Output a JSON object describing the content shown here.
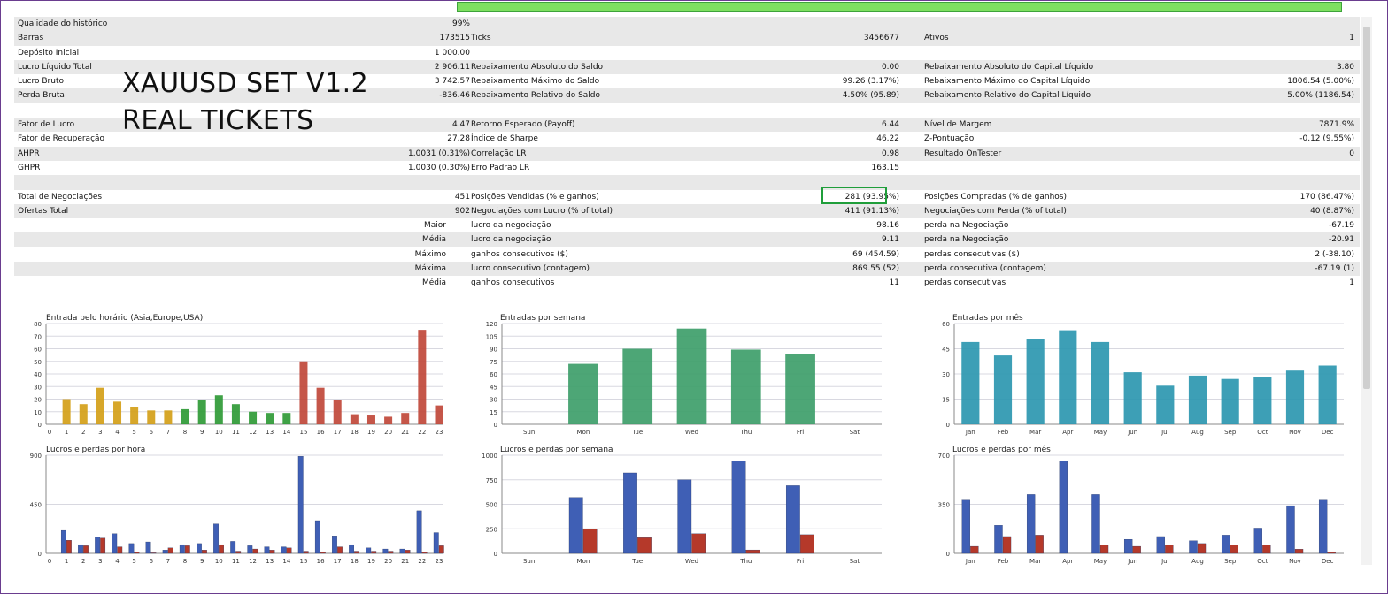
{
  "overlay_title": [
    "XAUUSD SET V1.2",
    "REAL TICKETS"
  ],
  "rows": [
    {
      "shade": true,
      "c1": "Qualidade do histórico",
      "v1": "99%",
      "c2": "",
      "v2": "",
      "c3": "",
      "v3": "",
      "bar": true
    },
    {
      "shade": true,
      "c1": "Barras",
      "v1": "173515",
      "c2": "Ticks",
      "v2": "3456677",
      "c3": "Ativos",
      "v3": "1"
    },
    {
      "shade": false,
      "c1": "Depósito Inicial",
      "v1": "1 000.00",
      "c2": "",
      "v2": "",
      "c3": "",
      "v3": ""
    },
    {
      "shade": true,
      "c1": "Lucro Líquido Total",
      "v1": "2 906.11",
      "c2": "Rebaixamento Absoluto do Saldo",
      "v2": "0.00",
      "c3": "Rebaixamento Absoluto do Capital Líquido",
      "v3": "3.80"
    },
    {
      "shade": false,
      "c1": "Lucro Bruto",
      "v1": "3 742.57",
      "c2": "Rebaixamento Máximo do Saldo",
      "v2": "99.26 (3.17%)",
      "c3": "Rebaixamento Máximo do Capital Líquido",
      "v3": "1806.54 (5.00%)"
    },
    {
      "shade": true,
      "c1": "Perda Bruta",
      "v1": "-836.46",
      "c2": "Rebaixamento Relativo do Saldo",
      "v2": "4.50% (95.89)",
      "c3": "Rebaixamento Relativo do Capital Líquido",
      "v3": "5.00% (1186.54)"
    },
    {
      "shade": false,
      "c1": "",
      "v1": "",
      "c2": "",
      "v2": "",
      "c3": "",
      "v3": ""
    },
    {
      "shade": true,
      "c1": "Fator de Lucro",
      "v1": "4.47",
      "c2": "Retorno Esperado (Payoff)",
      "v2": "6.44",
      "c3": "Nível de Margem",
      "v3": "7871.9%"
    },
    {
      "shade": false,
      "c1": "Fator de Recuperação",
      "v1": "27.28",
      "c2": "Índice de Sharpe",
      "v2": "46.22",
      "c3": "Z-Pontuação",
      "v3": "-0.12 (9.55%)"
    },
    {
      "shade": true,
      "c1": "AHPR",
      "v1": "1.0031 (0.31%)",
      "c2": "Correlação LR",
      "v2": "0.98",
      "c3": "Resultado OnTester",
      "v3": "0"
    },
    {
      "shade": false,
      "c1": "GHPR",
      "v1": "1.0030 (0.30%)",
      "c2": "Erro Padrão LR",
      "v2": "163.15",
      "c3": "",
      "v3": ""
    },
    {
      "shade": true,
      "c1": "",
      "v1": "",
      "c2": "",
      "v2": "",
      "c3": "",
      "v3": ""
    },
    {
      "shade": false,
      "c1": "Total de Negociações",
      "v1": "451",
      "c2": "Posições Vendidas (% e ganhos)",
      "v2": "281 (93.95%)",
      "c3": "Posições Compradas (% de ganhos)",
      "v3": "170 (86.47%)"
    },
    {
      "shade": true,
      "c1": "Ofertas Total",
      "v1": "902",
      "c2": "Negociações com Lucro (% of total)",
      "v2": "411 (91.13%)",
      "c3": "Negociações com Perda (% of total)",
      "v3": "40 (8.87%)"
    },
    {
      "shade": false,
      "lab1": "Maior",
      "c2": "lucro da negociação",
      "v2": "98.16",
      "c3": "perda na Negociação",
      "v3": "-67.19"
    },
    {
      "shade": true,
      "lab1": "Média",
      "c2": "lucro da negociação",
      "v2": "9.11",
      "c3": "perda na Negociação",
      "v3": "-20.91"
    },
    {
      "shade": false,
      "lab1": "Máximo",
      "c2": "ganhos consecutivos ($)",
      "v2": "69 (454.59)",
      "c3": "perdas consecutivas ($)",
      "v3": "2 (-38.10)"
    },
    {
      "shade": true,
      "lab1": "Máxima",
      "c2": "lucro consecutivo (contagem)",
      "v2": "869.55 (52)",
      "c3": "perda consecutiva (contagem)",
      "v3": "-67.19 (1)"
    },
    {
      "shade": false,
      "lab1": "Média",
      "c2": "ganhos consecutivos",
      "v2": "11",
      "c3": "perdas consecutivas",
      "v3": "1"
    }
  ],
  "chart_data": [
    {
      "type": "bar",
      "title": "Entrada pelo horário (Asia,Europe,USA)",
      "categories": [
        "0",
        "1",
        "2",
        "3",
        "4",
        "5",
        "6",
        "7",
        "8",
        "9",
        "10",
        "11",
        "12",
        "13",
        "14",
        "15",
        "16",
        "17",
        "18",
        "19",
        "20",
        "21",
        "22",
        "23"
      ],
      "values": [
        0,
        20,
        16,
        29,
        18,
        14,
        11,
        11,
        12,
        19,
        23,
        16,
        10,
        9,
        9,
        50,
        29,
        19,
        8,
        7,
        6,
        9,
        75,
        15
      ],
      "bar_colors": [
        "#d4a018",
        "#d4a018",
        "#d4a018",
        "#d4a018",
        "#d4a018",
        "#d4a018",
        "#d4a018",
        "#d4a018",
        "#2f9a36",
        "#2f9a36",
        "#2f9a36",
        "#2f9a36",
        "#2f9a36",
        "#2f9a36",
        "#2f9a36",
        "#c0483a",
        "#c0483a",
        "#c0483a",
        "#c0483a",
        "#c0483a",
        "#c0483a",
        "#c0483a",
        "#c0483a",
        "#c0483a"
      ],
      "yticks": [
        0,
        10,
        20,
        30,
        40,
        50,
        60,
        70,
        80
      ],
      "ylim": [
        0,
        80
      ]
    },
    {
      "type": "bar",
      "title": "Entradas por semana",
      "categories": [
        "Sun",
        "Mon",
        "Tue",
        "Wed",
        "Thu",
        "Fri",
        "Sat"
      ],
      "values": [
        0,
        72,
        90,
        114,
        89,
        84,
        0
      ],
      "bar_colors": [
        "#3e9e6a"
      ],
      "yticks": [
        0,
        15,
        30,
        45,
        60,
        75,
        90,
        105,
        120
      ],
      "ylim": [
        0,
        120
      ]
    },
    {
      "type": "bar",
      "title": "Entradas por mês",
      "categories": [
        "Jan",
        "Feb",
        "Mar",
        "Apr",
        "May",
        "Jun",
        "Jul",
        "Aug",
        "Sep",
        "Oct",
        "Nov",
        "Dec"
      ],
      "values": [
        49,
        41,
        51,
        56,
        49,
        31,
        23,
        29,
        27,
        28,
        32,
        35
      ],
      "bar_colors": [
        "#2c97b0"
      ],
      "yticks": [
        0,
        15,
        30,
        45,
        60
      ],
      "ylim": [
        0,
        60
      ]
    },
    {
      "type": "bar",
      "title": "Lucros e perdas por hora",
      "categories": [
        "0",
        "1",
        "2",
        "3",
        "4",
        "5",
        "6",
        "7",
        "8",
        "9",
        "10",
        "11",
        "12",
        "13",
        "14",
        "15",
        "16",
        "17",
        "18",
        "19",
        "20",
        "21",
        "22",
        "23"
      ],
      "series": [
        {
          "values": [
            0,
            210,
            80,
            150,
            180,
            90,
            105,
            30,
            80,
            90,
            270,
            110,
            70,
            60,
            60,
            890,
            300,
            160,
            80,
            50,
            40,
            40,
            390,
            190
          ],
          "color": "#3f5fb5"
        },
        {
          "values": [
            0,
            120,
            70,
            140,
            60,
            10,
            5,
            50,
            70,
            30,
            80,
            20,
            40,
            30,
            50,
            20,
            10,
            60,
            20,
            20,
            20,
            30,
            10,
            70
          ],
          "color": "#b5392a"
        }
      ],
      "yticks": [
        0,
        450,
        900
      ],
      "ylim": [
        0,
        900
      ]
    },
    {
      "type": "bar",
      "title": "Lucros e perdas por semana",
      "categories": [
        "Sun",
        "Mon",
        "Tue",
        "Wed",
        "Thu",
        "Fri",
        "Sat"
      ],
      "series": [
        {
          "values": [
            0,
            570,
            820,
            750,
            940,
            690,
            0
          ],
          "color": "#3f5fb5"
        },
        {
          "values": [
            0,
            250,
            160,
            200,
            35,
            190,
            0
          ],
          "color": "#b5392a"
        }
      ],
      "yticks": [
        0,
        250,
        500,
        750,
        1000
      ],
      "ylim": [
        0,
        1000
      ]
    },
    {
      "type": "bar",
      "title": "Lucros e perdas por mês",
      "categories": [
        "Jan",
        "Feb",
        "Mar",
        "Apr",
        "May",
        "Jun",
        "Jul",
        "Aug",
        "Sep",
        "Oct",
        "Nov",
        "Dec"
      ],
      "series": [
        {
          "values": [
            380,
            200,
            420,
            660,
            420,
            100,
            120,
            90,
            130,
            180,
            340,
            380
          ],
          "color": "#3f5fb5"
        },
        {
          "values": [
            50,
            120,
            130,
            0,
            60,
            50,
            60,
            70,
            60,
            60,
            30,
            10
          ],
          "color": "#b5392a"
        }
      ],
      "yticks": [
        0,
        350,
        700
      ],
      "ylim": [
        0,
        700
      ]
    }
  ]
}
